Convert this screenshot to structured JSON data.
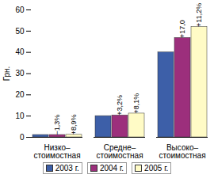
{
  "chart_data": {
    "type": "bar",
    "categories": [
      "Низко–\nстоимостная",
      "Средне–\nстоимостная",
      "Высоко–\nстоимостная"
    ],
    "series": [
      {
        "name": "2003 г.",
        "color": "#3d5fa8",
        "values": [
          1.1,
          10.0,
          40.0
        ]
      },
      {
        "name": "2004 г.",
        "color": "#9c2f7c",
        "values": [
          1.1,
          10.3,
          46.8
        ]
      },
      {
        "name": "2005 г.",
        "color": "#fffbc6",
        "values": [
          1.2,
          11.2,
          52.0
        ]
      }
    ],
    "annotations": [
      {
        "category": 0,
        "series": 1,
        "text": "−1,3%"
      },
      {
        "category": 0,
        "series": 2,
        "text": "+8,9%"
      },
      {
        "category": 1,
        "series": 1,
        "text": "+3,2%"
      },
      {
        "category": 1,
        "series": 2,
        "text": "+8,1%"
      },
      {
        "category": 2,
        "series": 1,
        "text": "+17,0"
      },
      {
        "category": 2,
        "series": 2,
        "text": "+11,2%"
      }
    ],
    "y_label": "Грн.",
    "ylim": [
      0,
      60
    ],
    "yticks": [
      0,
      10,
      20,
      30,
      40,
      50,
      60
    ],
    "grid": false,
    "legend": "bottom"
  }
}
